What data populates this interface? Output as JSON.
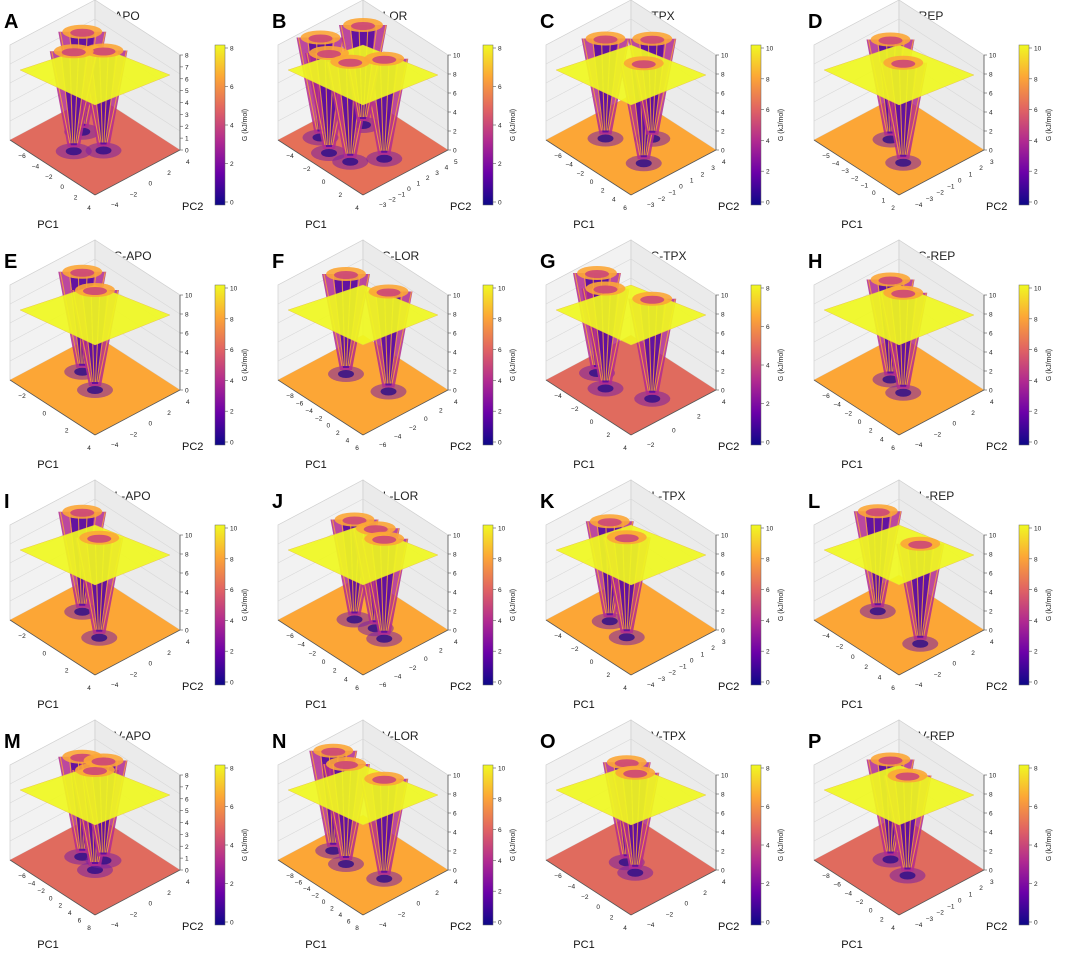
{
  "figure": {
    "colormap": [
      "#0d0887",
      "#6a00a8",
      "#b12a90",
      "#e16462",
      "#fca636",
      "#f0f921"
    ],
    "cbar_label": "G (kJ/mol)",
    "xlabel": "PC1",
    "ylabel": "PC2"
  },
  "chart_data": [
    {
      "type": "surface3d",
      "letter": "A",
      "title": "WT-APO",
      "zlim": [
        0,
        8
      ],
      "z_ticks": [
        "0",
        "1",
        "2",
        "3",
        "4",
        "5",
        "6",
        "7",
        "8"
      ],
      "cbar_ticks": [
        "0",
        "2",
        "4",
        "6",
        "8"
      ],
      "pc1_ticks": [
        "−6",
        "−4",
        "−2",
        "0",
        "2",
        "4"
      ],
      "pc2_ticks": [
        "−4",
        "−2",
        "0",
        "2",
        "4"
      ],
      "floor_color": "#e06b5e",
      "basins": [
        [
          0.3,
          0.55
        ],
        [
          0.6,
          0.5
        ],
        [
          0.45,
          0.3
        ]
      ]
    },
    {
      "type": "surface3d",
      "letter": "B",
      "title": "WT-LOR",
      "zlim": [
        0,
        10
      ],
      "z_ticks": [
        "0",
        "2",
        "4",
        "6",
        "8",
        "10"
      ],
      "cbar_ticks": [
        "0",
        "2",
        "4",
        "6",
        "8"
      ],
      "pc1_ticks": [
        "−4",
        "−2",
        "0",
        "2",
        "4"
      ],
      "pc2_ticks": [
        "−3",
        "−2",
        "−1",
        "0",
        "1",
        "2",
        "3",
        "4",
        "5"
      ],
      "floor_color": "#e57058",
      "basins": [
        [
          0.2,
          0.3
        ],
        [
          0.4,
          0.2
        ],
        [
          0.6,
          0.25
        ],
        [
          0.75,
          0.5
        ],
        [
          0.3,
          0.7
        ]
      ]
    },
    {
      "type": "surface3d",
      "letter": "C",
      "title": "WT-TPX",
      "zlim": [
        0,
        10
      ],
      "z_ticks": [
        "0",
        "2",
        "4",
        "6",
        "8",
        "10"
      ],
      "cbar_ticks": [
        "0",
        "2",
        "4",
        "6",
        "8",
        "10"
      ],
      "pc1_ticks": [
        "−6",
        "−4",
        "−2",
        "0",
        "2",
        "4",
        "6"
      ],
      "pc2_ticks": [
        "−3",
        "−2",
        "−1",
        "0",
        "1",
        "2",
        "3",
        "4"
      ],
      "floor_color": "#fca636",
      "basins": [
        [
          0.3,
          0.4
        ],
        [
          0.75,
          0.4
        ],
        [
          0.55,
          0.7
        ]
      ]
    },
    {
      "type": "surface3d",
      "letter": "D",
      "title": "WT-REP",
      "zlim": [
        0,
        10
      ],
      "z_ticks": [
        "0",
        "2",
        "4",
        "6",
        "8",
        "10"
      ],
      "cbar_ticks": [
        "0",
        "2",
        "4",
        "6",
        "8",
        "10"
      ],
      "pc1_ticks": [
        "−5",
        "−4",
        "−3",
        "−2",
        "−1",
        "0",
        "1",
        "2"
      ],
      "pc2_ticks": [
        "−4",
        "−3",
        "−2",
        "−1",
        "0",
        "1",
        "2",
        "3"
      ],
      "floor_color": "#fca636",
      "basins": [
        [
          0.4,
          0.5
        ],
        [
          0.7,
          0.35
        ]
      ]
    },
    {
      "type": "surface3d",
      "letter": "E",
      "title": "F1174C-APO",
      "zlim": [
        0,
        10
      ],
      "z_ticks": [
        "0",
        "2",
        "4",
        "6",
        "8",
        "10"
      ],
      "cbar_ticks": [
        "0",
        "2",
        "4",
        "6",
        "8",
        "10"
      ],
      "pc1_ticks": [
        "−2",
        "0",
        "2",
        "4"
      ],
      "pc2_ticks": [
        "−4",
        "−2",
        "0",
        "2",
        "4"
      ],
      "floor_color": "#fca636",
      "basins": [
        [
          0.3,
          0.55
        ],
        [
          0.55,
          0.45
        ]
      ]
    },
    {
      "type": "surface3d",
      "letter": "F",
      "title": "F1174C-LOR",
      "zlim": [
        0,
        10
      ],
      "z_ticks": [
        "0",
        "2",
        "4",
        "6",
        "8",
        "10"
      ],
      "cbar_ticks": [
        "0",
        "2",
        "4",
        "6",
        "8",
        "10"
      ],
      "pc1_ticks": [
        "−8",
        "−6",
        "−4",
        "−2",
        "0",
        "2",
        "4",
        "6"
      ],
      "pc2_ticks": [
        "−6",
        "−4",
        "−2",
        "0",
        "2",
        "4"
      ],
      "floor_color": "#fca636",
      "basins": [
        [
          0.3,
          0.5
        ],
        [
          0.7,
          0.6
        ]
      ]
    },
    {
      "type": "surface3d",
      "letter": "G",
      "title": "F1174C-TPX",
      "zlim": [
        0,
        10
      ],
      "z_ticks": [
        "0",
        "2",
        "4",
        "6",
        "8",
        "10"
      ],
      "cbar_ticks": [
        "0",
        "2",
        "4",
        "6",
        "8"
      ],
      "pc1_ticks": [
        "−4",
        "−2",
        "0",
        "2",
        "4"
      ],
      "pc2_ticks": [
        "−2",
        "0",
        "2",
        "4"
      ],
      "floor_color": "#e06b5e",
      "basins": [
        [
          0.2,
          0.4
        ],
        [
          0.4,
          0.3
        ],
        [
          0.75,
          0.5
        ]
      ]
    },
    {
      "type": "surface3d",
      "letter": "H",
      "title": "F1174C-REP",
      "zlim": [
        0,
        10
      ],
      "z_ticks": [
        "0",
        "2",
        "4",
        "6",
        "8",
        "10"
      ],
      "cbar_ticks": [
        "0",
        "2",
        "4",
        "6",
        "8",
        "10"
      ],
      "pc1_ticks": [
        "−6",
        "−4",
        "−2",
        "0",
        "2",
        "4",
        "6"
      ],
      "pc2_ticks": [
        "−4",
        "−2",
        "0",
        "2",
        "4"
      ],
      "floor_color": "#fca636",
      "basins": [
        [
          0.4,
          0.5
        ],
        [
          0.6,
          0.45
        ]
      ]
    },
    {
      "type": "surface3d",
      "letter": "I",
      "title": "F1174L-APO",
      "zlim": [
        0,
        10
      ],
      "z_ticks": [
        "0",
        "2",
        "4",
        "6",
        "8",
        "10"
      ],
      "cbar_ticks": [
        "0",
        "2",
        "4",
        "6",
        "8",
        "10"
      ],
      "pc1_ticks": [
        "−2",
        "0",
        "2",
        "4"
      ],
      "pc2_ticks": [
        "−4",
        "−2",
        "0",
        "2",
        "4"
      ],
      "floor_color": "#fca636",
      "basins": [
        [
          0.3,
          0.55
        ],
        [
          0.65,
          0.4
        ]
      ]
    },
    {
      "type": "surface3d",
      "letter": "J",
      "title": "F1174L-LOR",
      "zlim": [
        0,
        10
      ],
      "z_ticks": [
        "0",
        "2",
        "4",
        "6",
        "8",
        "10"
      ],
      "cbar_ticks": [
        "0",
        "2",
        "4",
        "6",
        "8",
        "10"
      ],
      "pc1_ticks": [
        "−6",
        "−4",
        "−2",
        "0",
        "2",
        "4",
        "6"
      ],
      "pc2_ticks": [
        "−6",
        "−4",
        "−2",
        "0",
        "2",
        "4"
      ],
      "floor_color": "#fca636",
      "basins": [
        [
          0.4,
          0.5
        ],
        [
          0.6,
          0.55
        ],
        [
          0.75,
          0.5
        ]
      ]
    },
    {
      "type": "surface3d",
      "letter": "K",
      "title": "F1174L-TPX",
      "zlim": [
        0,
        10
      ],
      "z_ticks": [
        "0",
        "2",
        "4",
        "6",
        "8",
        "10"
      ],
      "cbar_ticks": [
        "0",
        "2",
        "4",
        "6",
        "8",
        "10"
      ],
      "pc1_ticks": [
        "−4",
        "−2",
        "0",
        "2",
        "4"
      ],
      "pc2_ticks": [
        "−4",
        "−3",
        "−2",
        "−1",
        "0",
        "1",
        "2",
        "3"
      ],
      "floor_color": "#fca636",
      "basins": [
        [
          0.35,
          0.4
        ],
        [
          0.6,
          0.35
        ]
      ]
    },
    {
      "type": "surface3d",
      "letter": "L",
      "title": "F1174L-REP",
      "zlim": [
        0,
        10
      ],
      "z_ticks": [
        "0",
        "2",
        "4",
        "6",
        "8",
        "10"
      ],
      "cbar_ticks": [
        "0",
        "2",
        "4",
        "6",
        "8",
        "10"
      ],
      "pc1_ticks": [
        "−4",
        "−2",
        "0",
        "2",
        "4",
        "6"
      ],
      "pc2_ticks": [
        "−4",
        "−2",
        "0",
        "2",
        "4"
      ],
      "floor_color": "#fca636",
      "basins": [
        [
          0.25,
          0.5
        ],
        [
          0.8,
          0.45
        ]
      ]
    },
    {
      "type": "surface3d",
      "letter": "M",
      "title": "F1174V-APO",
      "zlim": [
        0,
        8
      ],
      "z_ticks": [
        "0",
        "1",
        "2",
        "3",
        "4",
        "5",
        "6",
        "7",
        "8"
      ],
      "cbar_ticks": [
        "0",
        "2",
        "4",
        "6",
        "8"
      ],
      "pc1_ticks": [
        "−6",
        "−4",
        "−2",
        "0",
        "2",
        "4",
        "6",
        "8"
      ],
      "pc2_ticks": [
        "−4",
        "−2",
        "0",
        "2",
        "4"
      ],
      "floor_color": "#e06b5e",
      "basins": [
        [
          0.35,
          0.5
        ],
        [
          0.55,
          0.45
        ],
        [
          0.5,
          0.6
        ]
      ]
    },
    {
      "type": "surface3d",
      "letter": "N",
      "title": "F1174V-LOR",
      "zlim": [
        0,
        10
      ],
      "z_ticks": [
        "0",
        "2",
        "4",
        "6",
        "8",
        "10"
      ],
      "cbar_ticks": [
        "0",
        "2",
        "4",
        "6",
        "8",
        "10"
      ],
      "pc1_ticks": [
        "−8",
        "−6",
        "−4",
        "−2",
        "0",
        "2",
        "4",
        "6",
        "8"
      ],
      "pc2_ticks": [
        "−4",
        "−2",
        "0",
        "2",
        "4"
      ],
      "floor_color": "#fca636",
      "basins": [
        [
          0.2,
          0.45
        ],
        [
          0.4,
          0.4
        ],
        [
          0.75,
          0.5
        ]
      ]
    },
    {
      "type": "surface3d",
      "letter": "O",
      "title": "F1174V-TPX",
      "zlim": [
        0,
        10
      ],
      "z_ticks": [
        "0",
        "2",
        "4",
        "6",
        "8",
        "10"
      ],
      "cbar_ticks": [
        "0",
        "2",
        "4",
        "6",
        "8"
      ],
      "pc1_ticks": [
        "−6",
        "−4",
        "−2",
        "0",
        "2",
        "4"
      ],
      "pc2_ticks": [
        "−4",
        "−2",
        "0",
        "2",
        "4"
      ],
      "floor_color": "#e06b5e",
      "basins": [
        [
          0.45,
          0.5
        ],
        [
          0.6,
          0.45
        ]
      ]
    },
    {
      "type": "surface3d",
      "letter": "P",
      "title": "F1174V-REP",
      "zlim": [
        0,
        10
      ],
      "z_ticks": [
        "0",
        "2",
        "4",
        "6",
        "8",
        "10"
      ],
      "cbar_ticks": [
        "0",
        "2",
        "4",
        "6",
        "8"
      ],
      "pc1_ticks": [
        "−8",
        "−6",
        "−4",
        "−2",
        "0",
        "2",
        "4"
      ],
      "pc2_ticks": [
        "−4",
        "−3",
        "−2",
        "−1",
        "0",
        "1",
        "2",
        "3"
      ],
      "floor_color": "#e06b5e",
      "basins": [
        [
          0.4,
          0.5
        ],
        [
          0.65,
          0.45
        ]
      ]
    }
  ]
}
